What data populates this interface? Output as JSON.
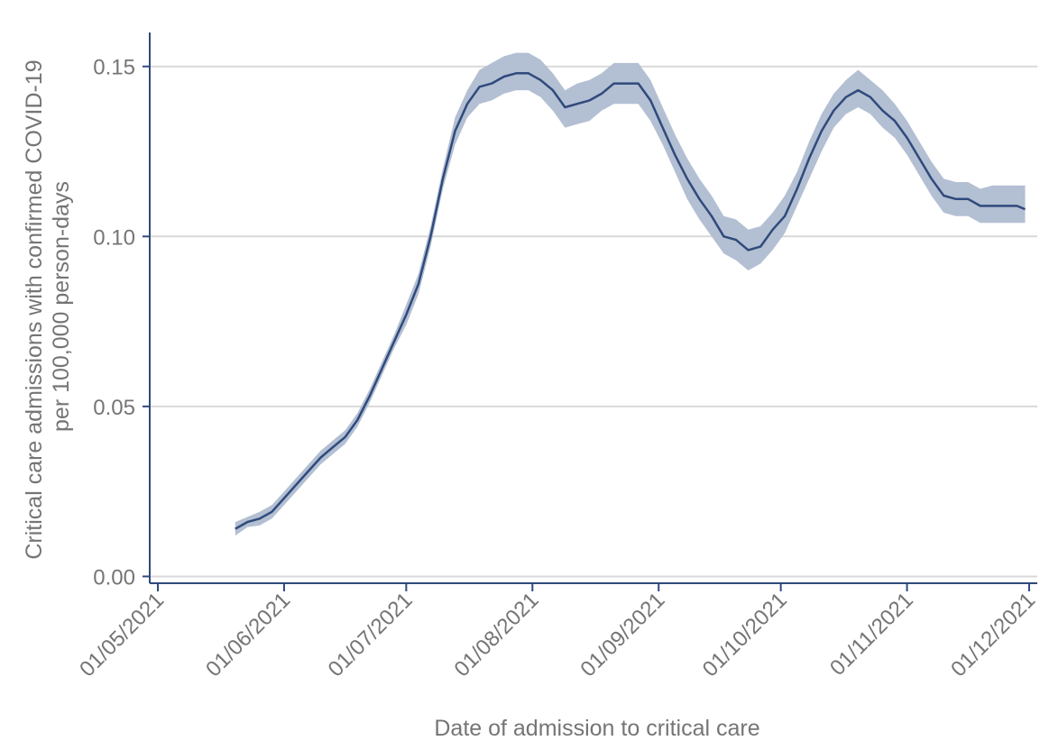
{
  "colors": {
    "line": "#2f4a7c",
    "band": "#b3bfd2",
    "axis": "#2f4a7c",
    "grid": "#d9d9d9",
    "text": "#757575"
  },
  "chart_data": {
    "type": "line",
    "title": "",
    "xlabel": "Date of admission to critical care",
    "ylabel_lines": [
      "Critical care admissions with confirmed COVID-19",
      "per 100,000 person-days"
    ],
    "x_ticks": [
      "01/05/2021",
      "01/06/2021",
      "01/07/2021",
      "01/08/2021",
      "01/09/2021",
      "01/10/2021",
      "01/11/2021",
      "01/12/2021"
    ],
    "y_ticks": [
      "0.00",
      "0.05",
      "0.10",
      "0.15"
    ],
    "xlim": [
      "2021-04-29",
      "2021-12-03"
    ],
    "ylim": [
      -0.002,
      0.16
    ],
    "grid": true,
    "series": [
      {
        "x": [
          "2021-05-20",
          "2021-05-23",
          "2021-05-26",
          "2021-05-29",
          "2021-06-01",
          "2021-06-04",
          "2021-06-07",
          "2021-06-10",
          "2021-06-13",
          "2021-06-16",
          "2021-06-19",
          "2021-06-22",
          "2021-06-25",
          "2021-06-28",
          "2021-07-01",
          "2021-07-04",
          "2021-07-07",
          "2021-07-10",
          "2021-07-13",
          "2021-07-16",
          "2021-07-19",
          "2021-07-22",
          "2021-07-25",
          "2021-07-28",
          "2021-07-31",
          "2021-08-03",
          "2021-08-06",
          "2021-08-09",
          "2021-08-12",
          "2021-08-15",
          "2021-08-18",
          "2021-08-21",
          "2021-08-24",
          "2021-08-27",
          "2021-08-30",
          "2021-09-02",
          "2021-09-05",
          "2021-09-08",
          "2021-09-11",
          "2021-09-14",
          "2021-09-17",
          "2021-09-20",
          "2021-09-23",
          "2021-09-26",
          "2021-09-29",
          "2021-10-02",
          "2021-10-05",
          "2021-10-08",
          "2021-10-11",
          "2021-10-14",
          "2021-10-17",
          "2021-10-20",
          "2021-10-23",
          "2021-10-26",
          "2021-10-29",
          "2021-11-01",
          "2021-11-04",
          "2021-11-07",
          "2021-11-10",
          "2021-11-13",
          "2021-11-16",
          "2021-11-19",
          "2021-11-22",
          "2021-11-25",
          "2021-11-28",
          "2021-11-30"
        ],
        "y": [
          0.014,
          0.016,
          0.017,
          0.019,
          0.023,
          0.027,
          0.031,
          0.035,
          0.038,
          0.041,
          0.046,
          0.053,
          0.061,
          0.069,
          0.077,
          0.086,
          0.1,
          0.117,
          0.131,
          0.139,
          0.144,
          0.145,
          0.147,
          0.148,
          0.148,
          0.146,
          0.143,
          0.138,
          0.139,
          0.14,
          0.142,
          0.145,
          0.145,
          0.145,
          0.14,
          0.132,
          0.124,
          0.117,
          0.111,
          0.106,
          0.1,
          0.099,
          0.096,
          0.097,
          0.102,
          0.106,
          0.114,
          0.123,
          0.131,
          0.137,
          0.141,
          0.143,
          0.141,
          0.137,
          0.134,
          0.129,
          0.123,
          0.117,
          0.112,
          0.111,
          0.111,
          0.109,
          0.109,
          0.109,
          0.109,
          0.108
        ],
        "lower": [
          0.012,
          0.0145,
          0.015,
          0.017,
          0.021,
          0.025,
          0.029,
          0.033,
          0.036,
          0.039,
          0.044,
          0.051,
          0.059,
          0.067,
          0.074,
          0.083,
          0.097,
          0.114,
          0.127,
          0.135,
          0.139,
          0.14,
          0.142,
          0.143,
          0.143,
          0.141,
          0.137,
          0.132,
          0.133,
          0.134,
          0.137,
          0.139,
          0.139,
          0.139,
          0.134,
          0.127,
          0.119,
          0.111,
          0.105,
          0.1,
          0.095,
          0.093,
          0.09,
          0.092,
          0.096,
          0.101,
          0.109,
          0.117,
          0.125,
          0.132,
          0.136,
          0.138,
          0.136,
          0.132,
          0.129,
          0.124,
          0.118,
          0.112,
          0.107,
          0.106,
          0.106,
          0.104,
          0.104,
          0.104,
          0.104,
          0.104
        ],
        "upper": [
          0.016,
          0.0175,
          0.019,
          0.021,
          0.025,
          0.029,
          0.033,
          0.037,
          0.04,
          0.043,
          0.048,
          0.055,
          0.063,
          0.071,
          0.08,
          0.089,
          0.103,
          0.12,
          0.135,
          0.143,
          0.149,
          0.151,
          0.153,
          0.154,
          0.154,
          0.152,
          0.148,
          0.143,
          0.145,
          0.146,
          0.148,
          0.151,
          0.151,
          0.151,
          0.146,
          0.138,
          0.13,
          0.123,
          0.117,
          0.112,
          0.106,
          0.105,
          0.102,
          0.103,
          0.107,
          0.112,
          0.119,
          0.128,
          0.136,
          0.142,
          0.146,
          0.149,
          0.146,
          0.143,
          0.139,
          0.134,
          0.128,
          0.122,
          0.117,
          0.116,
          0.116,
          0.114,
          0.115,
          0.115,
          0.115,
          0.115
        ]
      }
    ]
  }
}
